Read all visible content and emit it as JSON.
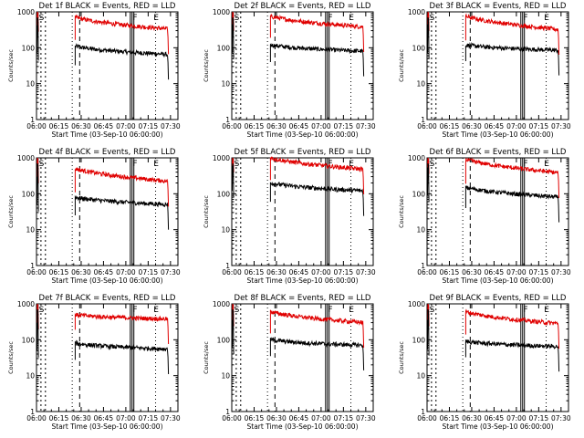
{
  "figure": {
    "background": "#ffffff",
    "event_color": "#000000",
    "lld_color": "#e00000"
  },
  "chart_data": [
    {
      "type": "line",
      "title": "Det 1f BLACK = Events, RED = LLD",
      "ylabel": "Counts/sec",
      "xlabel": "Start Time (03-Sep-10 06:00:00)",
      "y_scale": "log",
      "ylim": [
        1,
        1000
      ],
      "xlim_minutes": [
        0,
        95
      ],
      "x_ticks": [
        "06:00",
        "06:15",
        "06:30",
        "06:45",
        "07:00",
        "07:15",
        "07:30"
      ],
      "y_ticks": [
        "1",
        "10",
        "100",
        "1000"
      ],
      "markers": [
        {
          "label": "S",
          "minute": 1
        },
        {
          "label": "F",
          "minute": 64
        },
        {
          "label": "E",
          "minute": 78
        }
      ],
      "series": [
        {
          "name": "Events",
          "color": "black",
          "start_minute": 26,
          "start_value": 110,
          "end_value": 65
        },
        {
          "name": "LLD",
          "color": "red",
          "start_minute": 26,
          "start_value": 700,
          "end_value": 330
        }
      ]
    },
    {
      "type": "line",
      "title": "Det 2f BLACK = Events, RED = LLD",
      "ylabel": "Counts/sec",
      "xlabel": "Start Time (03-Sep-10 06:00:00)",
      "y_scale": "log",
      "ylim": [
        1,
        1000
      ],
      "xlim_minutes": [
        0,
        95
      ],
      "x_ticks": [
        "06:00",
        "06:15",
        "06:30",
        "06:45",
        "07:00",
        "07:15",
        "07:30"
      ],
      "y_ticks": [
        "1",
        "10",
        "100",
        "1000"
      ],
      "markers": [
        {
          "label": "S",
          "minute": 1
        },
        {
          "label": "F",
          "minute": 64
        },
        {
          "label": "E",
          "minute": 78
        }
      ],
      "series": [
        {
          "name": "Events",
          "color": "black",
          "start_minute": 26,
          "start_value": 120,
          "end_value": 80
        },
        {
          "name": "LLD",
          "color": "red",
          "start_minute": 26,
          "start_value": 750,
          "end_value": 380
        }
      ]
    },
    {
      "type": "line",
      "title": "Det 3f BLACK = Events, RED = LLD",
      "ylabel": "Counts/sec",
      "xlabel": "Start Time (03-Sep-10 06:00:00)",
      "y_scale": "log",
      "ylim": [
        1,
        1000
      ],
      "xlim_minutes": [
        0,
        95
      ],
      "x_ticks": [
        "06:00",
        "06:15",
        "06:30",
        "06:45",
        "07:00",
        "07:15",
        "07:30"
      ],
      "y_ticks": [
        "1",
        "10",
        "100",
        "1000"
      ],
      "markers": [
        {
          "label": "S",
          "minute": 1
        },
        {
          "label": "F",
          "minute": 64
        },
        {
          "label": "E",
          "minute": 78
        }
      ],
      "series": [
        {
          "name": "Events",
          "color": "black",
          "start_minute": 26,
          "start_value": 120,
          "end_value": 85
        },
        {
          "name": "LLD",
          "color": "red",
          "start_minute": 26,
          "start_value": 750,
          "end_value": 320
        }
      ]
    },
    {
      "type": "line",
      "title": "Det 4f BLACK = Events, RED = LLD",
      "ylabel": "Counts/sec",
      "xlabel": "Start Time (03-Sep-10 06:00:00)",
      "y_scale": "log",
      "ylim": [
        1,
        1000
      ],
      "xlim_minutes": [
        0,
        95
      ],
      "x_ticks": [
        "06:00",
        "06:15",
        "06:30",
        "06:45",
        "07:00",
        "07:15",
        "07:30"
      ],
      "y_ticks": [
        "1",
        "10",
        "100",
        "1000"
      ],
      "markers": [
        {
          "label": "S",
          "minute": 1
        },
        {
          "label": "F",
          "minute": 64
        },
        {
          "label": "E",
          "minute": 78
        }
      ],
      "series": [
        {
          "name": "Events",
          "color": "black",
          "start_minute": 26,
          "start_value": 80,
          "end_value": 50
        },
        {
          "name": "LLD",
          "color": "red",
          "start_minute": 26,
          "start_value": 500,
          "end_value": 220
        }
      ]
    },
    {
      "type": "line",
      "title": "Det 5f BLACK = Events, RED = LLD",
      "ylabel": "Counts/sec",
      "xlabel": "Start Time (03-Sep-10 06:00:00)",
      "y_scale": "log",
      "ylim": [
        1,
        1000
      ],
      "xlim_minutes": [
        0,
        95
      ],
      "x_ticks": [
        "06:00",
        "06:15",
        "06:30",
        "06:45",
        "07:00",
        "07:15",
        "07:30"
      ],
      "y_ticks": [
        "1",
        "10",
        "100",
        "1000"
      ],
      "markers": [
        {
          "label": "S",
          "minute": 1
        },
        {
          "label": "F",
          "minute": 64
        },
        {
          "label": "E",
          "minute": 78
        }
      ],
      "series": [
        {
          "name": "Events",
          "color": "black",
          "start_minute": 26,
          "start_value": 200,
          "end_value": 120
        },
        {
          "name": "LLD",
          "color": "red",
          "start_minute": 26,
          "start_value": 1000,
          "end_value": 480
        }
      ]
    },
    {
      "type": "line",
      "title": "Det 6f BLACK = Events, RED = LLD",
      "ylabel": "Counts/sec",
      "xlabel": "Start Time (03-Sep-10 06:00:00)",
      "y_scale": "log",
      "ylim": [
        1,
        1000
      ],
      "xlim_minutes": [
        0,
        95
      ],
      "x_ticks": [
        "06:00",
        "06:15",
        "06:30",
        "06:45",
        "07:00",
        "07:15",
        "07:30"
      ],
      "y_ticks": [
        "1",
        "10",
        "100",
        "1000"
      ],
      "markers": [
        {
          "label": "S",
          "minute": 1
        },
        {
          "label": "F",
          "minute": 64
        },
        {
          "label": "E",
          "minute": 78
        }
      ],
      "series": [
        {
          "name": "Events",
          "color": "black",
          "start_minute": 26,
          "start_value": 150,
          "end_value": 80
        },
        {
          "name": "LLD",
          "color": "red",
          "start_minute": 26,
          "start_value": 900,
          "end_value": 380
        }
      ]
    },
    {
      "type": "line",
      "title": "Det 7f BLACK = Events, RED = LLD",
      "ylabel": "Counts/sec",
      "xlabel": "Start Time (03-Sep-10 06:00:00)",
      "y_scale": "log",
      "ylim": [
        1,
        1000
      ],
      "xlim_minutes": [
        0,
        95
      ],
      "x_ticks": [
        "06:00",
        "06:15",
        "06:30",
        "06:45",
        "07:00",
        "07:15",
        "07:30"
      ],
      "y_ticks": [
        "1",
        "10",
        "100",
        "1000"
      ],
      "markers": [
        {
          "label": "S",
          "minute": 1
        },
        {
          "label": "F",
          "minute": 64
        },
        {
          "label": "E",
          "minute": 78
        }
      ],
      "series": [
        {
          "name": "Events",
          "color": "black",
          "start_minute": 26,
          "start_value": 80,
          "end_value": 55
        },
        {
          "name": "LLD",
          "color": "red",
          "start_minute": 26,
          "start_value": 500,
          "end_value": 380
        }
      ]
    },
    {
      "type": "line",
      "title": "Det 8f BLACK = Events, RED = LLD",
      "ylabel": "Counts/sec",
      "xlabel": "Start Time (03-Sep-10 06:00:00)",
      "y_scale": "log",
      "ylim": [
        1,
        1000
      ],
      "xlim_minutes": [
        0,
        95
      ],
      "x_ticks": [
        "06:00",
        "06:15",
        "06:30",
        "06:45",
        "07:00",
        "07:15",
        "07:30"
      ],
      "y_ticks": [
        "1",
        "10",
        "100",
        "1000"
      ],
      "markers": [
        {
          "label": "S",
          "minute": 1
        },
        {
          "label": "F",
          "minute": 64
        },
        {
          "label": "E",
          "minute": 78
        }
      ],
      "series": [
        {
          "name": "Events",
          "color": "black",
          "start_minute": 26,
          "start_value": 100,
          "end_value": 70
        },
        {
          "name": "LLD",
          "color": "red",
          "start_minute": 26,
          "start_value": 600,
          "end_value": 300
        }
      ]
    },
    {
      "type": "line",
      "title": "Det 9f BLACK = Events, RED = LLD",
      "ylabel": "Counts/sec",
      "xlabel": "Start Time (03-Sep-10 06:00:00)",
      "y_scale": "log",
      "ylim": [
        1,
        1000
      ],
      "xlim_minutes": [
        0,
        95
      ],
      "x_ticks": [
        "06:00",
        "06:15",
        "06:30",
        "06:45",
        "07:00",
        "07:15",
        "07:30"
      ],
      "y_ticks": [
        "1",
        "10",
        "100",
        "1000"
      ],
      "markers": [
        {
          "label": "S",
          "minute": 1
        },
        {
          "label": "F",
          "minute": 64
        },
        {
          "label": "E",
          "minute": 78
        }
      ],
      "series": [
        {
          "name": "Events",
          "color": "black",
          "start_minute": 26,
          "start_value": 90,
          "end_value": 65
        },
        {
          "name": "LLD",
          "color": "red",
          "start_minute": 26,
          "start_value": 600,
          "end_value": 280
        }
      ]
    }
  ]
}
